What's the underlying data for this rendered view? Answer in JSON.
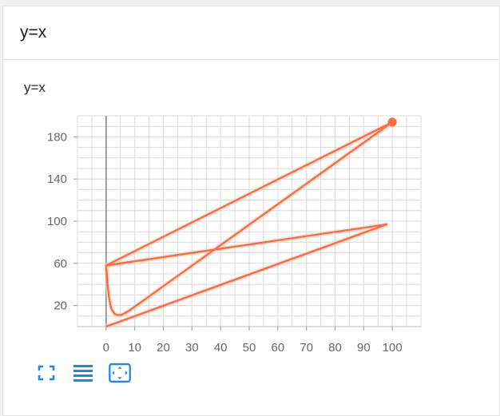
{
  "card": {
    "title": "y=x"
  },
  "chart_data": {
    "type": "line",
    "title": "y=x",
    "xlabel": "",
    "ylabel": "",
    "xlim": [
      -10,
      110
    ],
    "ylim": [
      0,
      200
    ],
    "xticks": [
      0,
      10,
      20,
      30,
      40,
      50,
      60,
      70,
      80,
      90,
      100
    ],
    "yticks": [
      20,
      60,
      100,
      140,
      180
    ],
    "grid": true,
    "series": [
      {
        "color": "#ff6b3d",
        "x": [
          0,
          0.5,
          1,
          1.5,
          2,
          3,
          4,
          5,
          6,
          7,
          8,
          100,
          0,
          98,
          0
        ],
        "y": [
          58,
          40,
          28,
          20,
          16,
          12,
          11,
          11,
          12,
          13.5,
          15,
          194,
          58,
          97,
          0
        ]
      }
    ],
    "highlight_point": {
      "x": 100,
      "y": 194
    }
  },
  "toolbar": {
    "buttons": [
      {
        "name": "fullscreen-button",
        "icon": "fullscreen-icon"
      },
      {
        "name": "legend-list-button",
        "icon": "list-icon"
      },
      {
        "name": "fit-view-button",
        "icon": "fit-view-icon"
      }
    ],
    "accent": "#1e88e5"
  }
}
